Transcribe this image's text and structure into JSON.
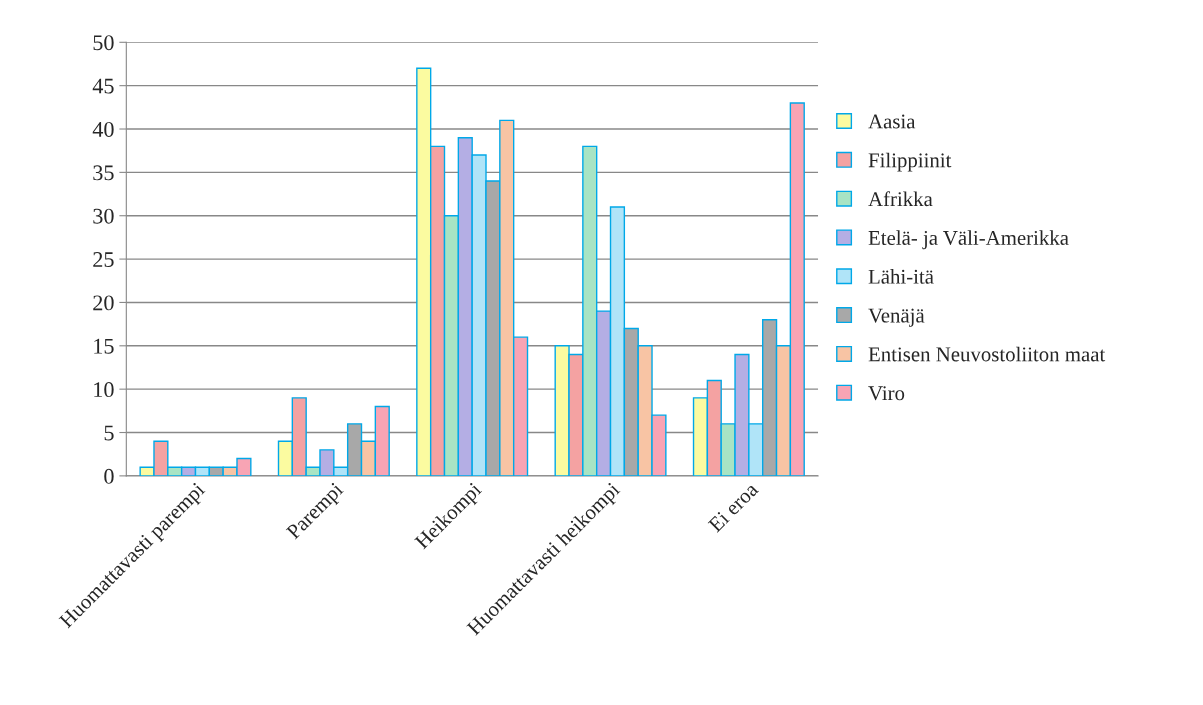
{
  "chart_data": {
    "type": "bar",
    "categories": [
      "Huomattavasti parempi",
      "Parempi",
      "Heikompi",
      "Huomattavasti heikompi",
      "Ei eroa"
    ],
    "series": [
      {
        "name": "Aasia",
        "color": "#fbfba0",
        "values": [
          1,
          4,
          47,
          15,
          9
        ]
      },
      {
        "name": "Filippiinit",
        "color": "#f4a2a2",
        "values": [
          4,
          9,
          38,
          14,
          11
        ]
      },
      {
        "name": "Afrikka",
        "color": "#a8e4c4",
        "values": [
          1,
          1,
          30,
          38,
          6
        ]
      },
      {
        "name": "Etelä- ja Väli-Amerikka",
        "color": "#b4aee4",
        "values": [
          1,
          3,
          39,
          19,
          14
        ]
      },
      {
        "name": "Lähi-itä",
        "color": "#b0e4f8",
        "values": [
          1,
          1,
          37,
          31,
          6
        ]
      },
      {
        "name": "Venäjä",
        "color": "#a8a8a8",
        "values": [
          1,
          6,
          34,
          17,
          18
        ]
      },
      {
        "name": "Entisen Neuvostoliiton maat",
        "color": "#f8c4a4",
        "values": [
          1,
          4,
          41,
          15,
          15
        ]
      },
      {
        "name": "Viro",
        "color": "#f8a4b4",
        "values": [
          2,
          8,
          16,
          7,
          43
        ]
      }
    ],
    "ylim": [
      0,
      50
    ],
    "yticks": [
      0,
      5,
      10,
      15,
      20,
      25,
      30,
      35,
      40,
      45,
      50
    ],
    "grid": "y",
    "legend": "right"
  }
}
